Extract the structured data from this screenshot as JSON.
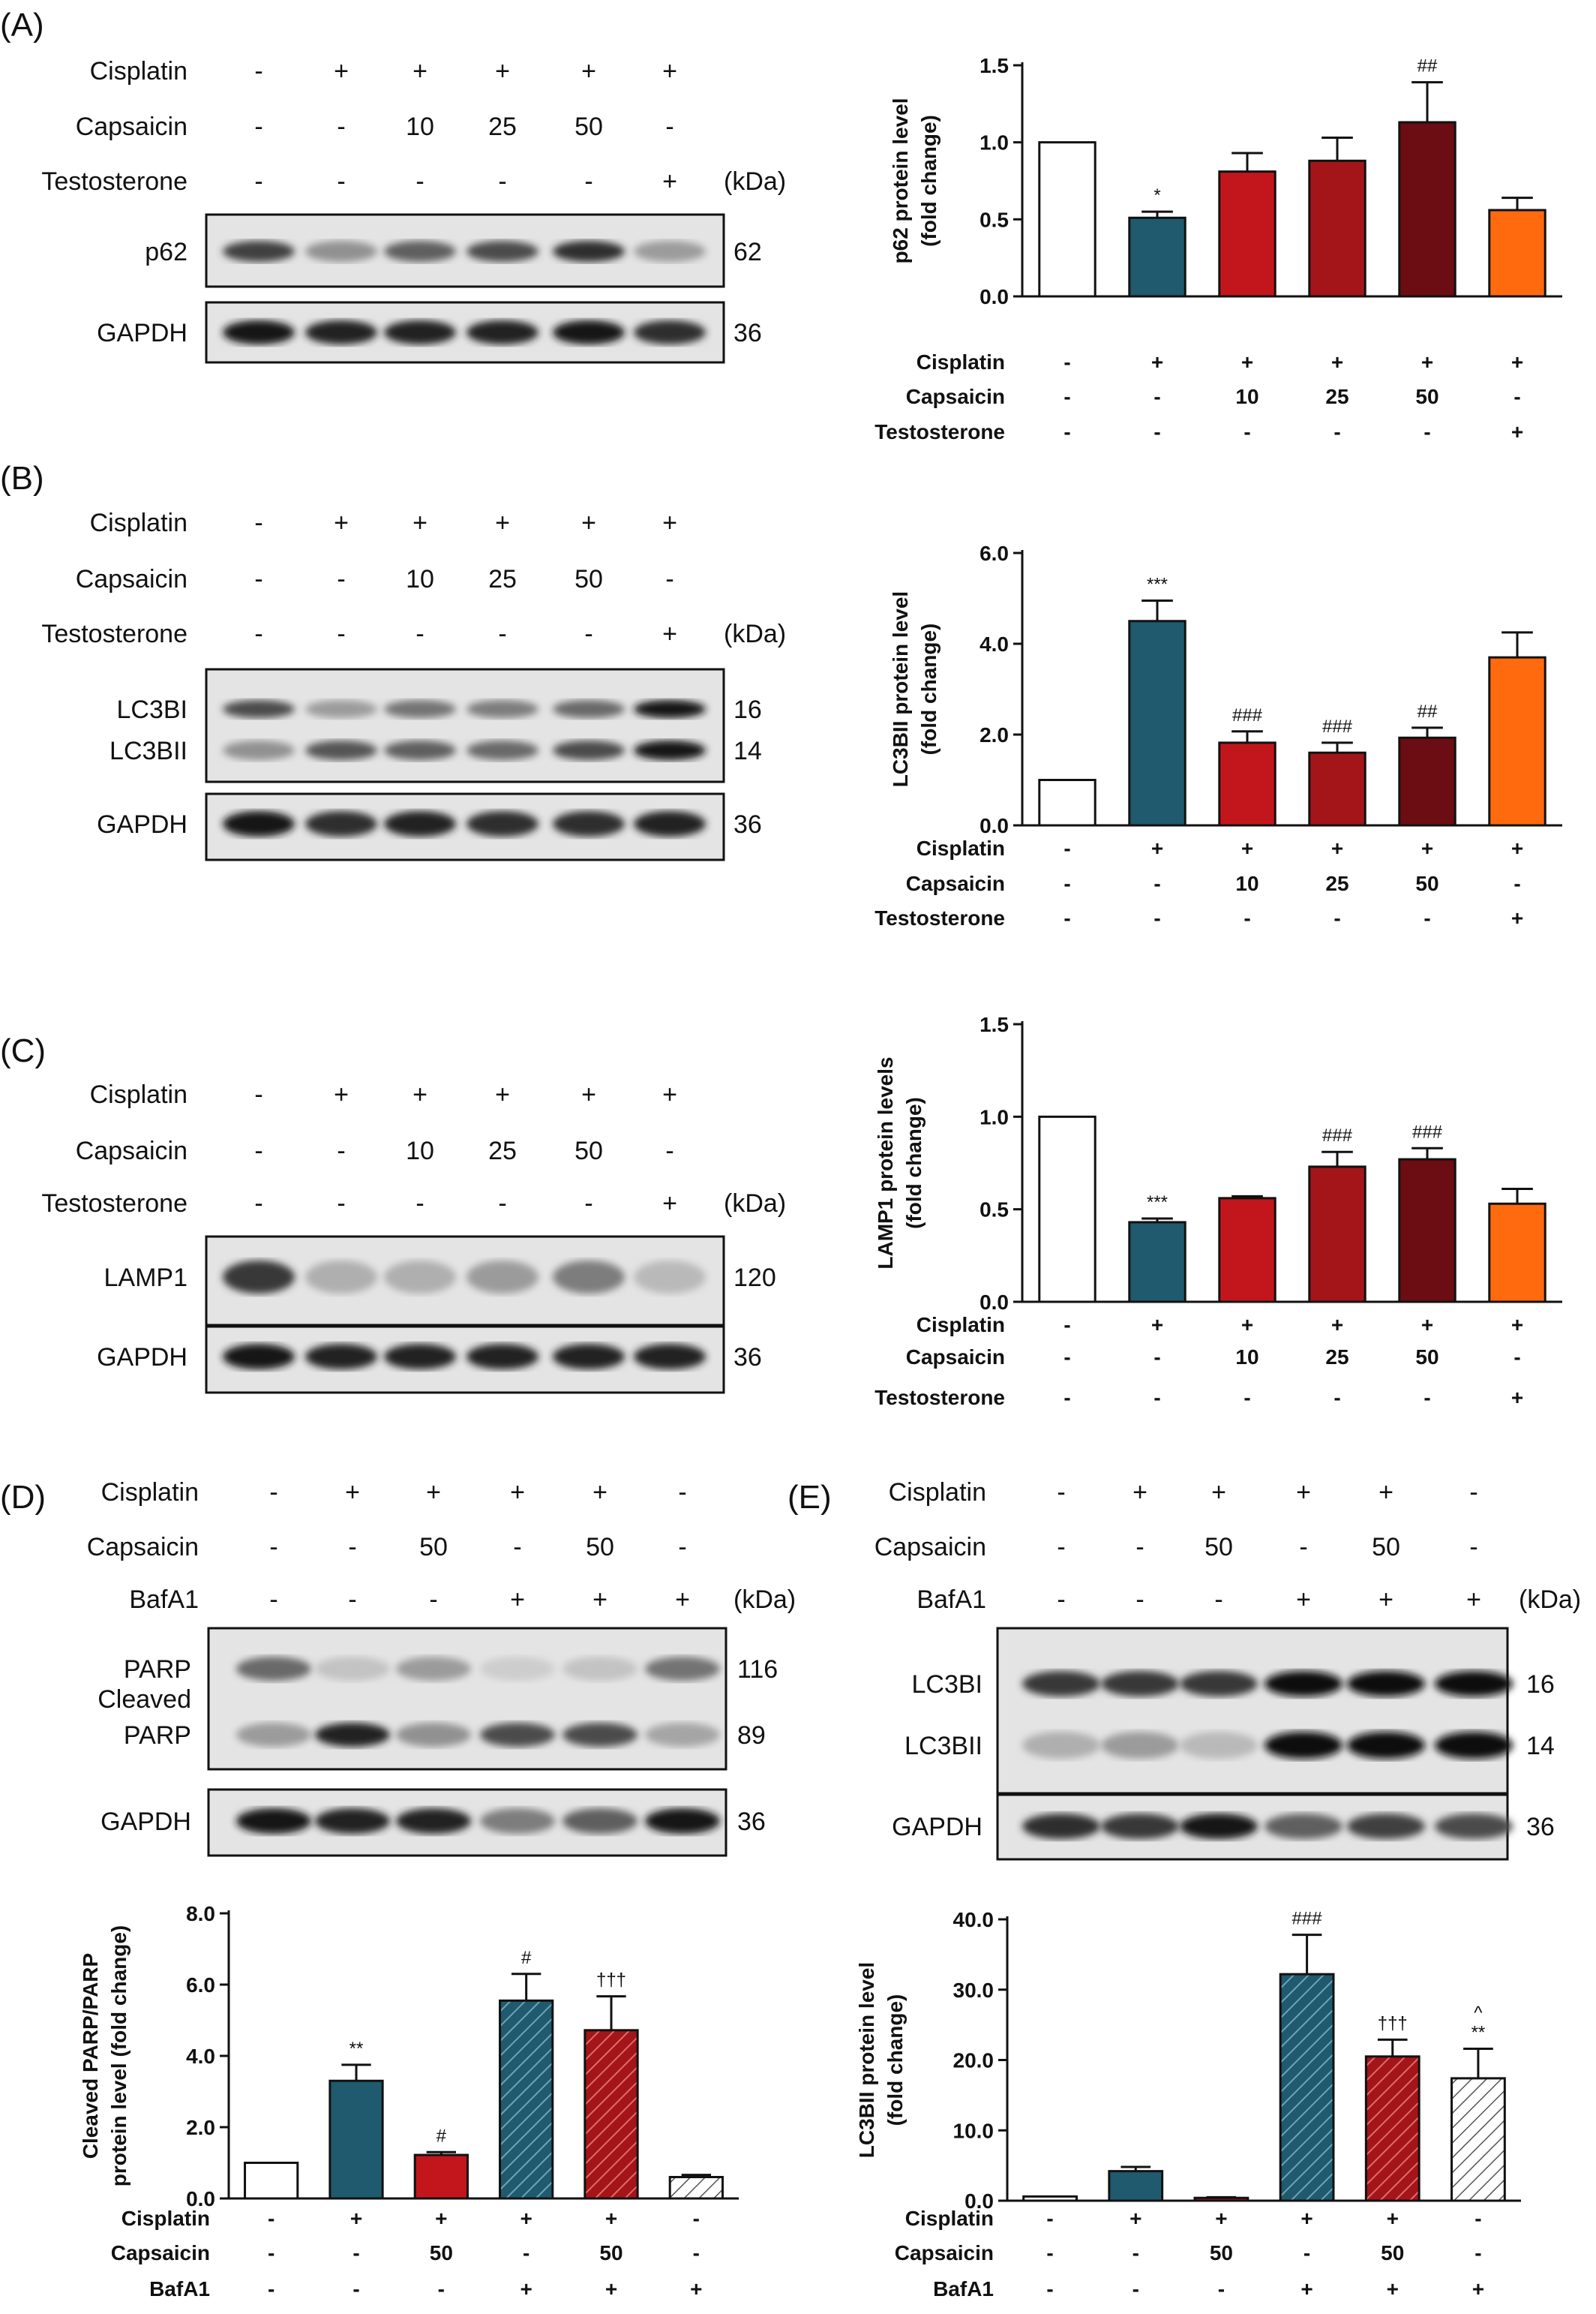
{
  "panels": {
    "A": "(A)",
    "B": "(B)",
    "C": "(C)",
    "D": "(D)",
    "E": "(E)"
  },
  "units": "(kDa)",
  "blot_conditions": {
    "abc": {
      "rows": [
        {
          "label": "Cisplatin",
          "values": [
            "-",
            "+",
            "+",
            "+",
            "+",
            "+"
          ]
        },
        {
          "label": "Capsaicin",
          "values": [
            "-",
            "-",
            "10",
            "25",
            "50",
            "-"
          ]
        },
        {
          "label": "Testosterone",
          "values": [
            "-",
            "-",
            "-",
            "-",
            "-",
            "+"
          ]
        }
      ]
    },
    "de": {
      "rows": [
        {
          "label": "Cisplatin",
          "values": [
            "-",
            "+",
            "+",
            "+",
            "+",
            "-"
          ]
        },
        {
          "label": "Capsaicin",
          "values": [
            "-",
            "-",
            "50",
            "-",
            "50",
            "-"
          ]
        },
        {
          "label": "BafA1",
          "values": [
            "-",
            "-",
            "-",
            "+",
            "+",
            "+"
          ]
        }
      ]
    }
  },
  "blots": {
    "A": [
      {
        "label": "p62",
        "kda": "62",
        "intensity": [
          0.75,
          0.35,
          0.6,
          0.7,
          0.85,
          0.3
        ]
      },
      {
        "label": "GAPDH",
        "kda": "36",
        "intensity": [
          0.95,
          0.9,
          0.9,
          0.9,
          0.95,
          0.85
        ]
      }
    ],
    "B": [
      {
        "label": "LC3BI",
        "kda": "16",
        "intensity": [
          0.7,
          0.3,
          0.5,
          0.45,
          0.55,
          0.95
        ]
      },
      {
        "label": "LC3BII",
        "kda": "14",
        "intensity": [
          0.35,
          0.65,
          0.6,
          0.55,
          0.7,
          0.95
        ]
      },
      {
        "label": "GAPDH",
        "kda": "36",
        "intensity": [
          0.95,
          0.85,
          0.9,
          0.85,
          0.85,
          0.9
        ]
      }
    ],
    "C": [
      {
        "label": "LAMP1",
        "kda": "120",
        "intensity": [
          0.8,
          0.2,
          0.2,
          0.3,
          0.45,
          0.15
        ]
      },
      {
        "label": "GAPDH",
        "kda": "36",
        "intensity": [
          0.95,
          0.9,
          0.9,
          0.9,
          0.9,
          0.9
        ]
      }
    ],
    "D": [
      {
        "label": "PARP",
        "kda": "116",
        "intensity": [
          0.55,
          0.1,
          0.3,
          0.05,
          0.1,
          0.5
        ]
      },
      {
        "label": "Cleaved\nPARP",
        "kda": "89",
        "intensity": [
          0.3,
          0.9,
          0.35,
          0.7,
          0.7,
          0.25
        ]
      },
      {
        "label": "GAPDH",
        "kda": "36",
        "intensity": [
          0.95,
          0.9,
          0.9,
          0.45,
          0.6,
          0.95
        ]
      }
    ],
    "E": [
      {
        "label": "LC3BI",
        "kda": "16",
        "intensity": [
          0.8,
          0.8,
          0.8,
          1.0,
          1.0,
          1.0
        ]
      },
      {
        "label": "LC3BII",
        "kda": "14",
        "intensity": [
          0.2,
          0.3,
          0.15,
          1.0,
          1.0,
          1.0
        ]
      },
      {
        "label": "GAPDH",
        "kda": "36",
        "intensity": [
          0.85,
          0.8,
          0.95,
          0.6,
          0.75,
          0.7
        ]
      }
    ]
  },
  "chart_data": [
    {
      "panel": "A",
      "type": "bar",
      "ylabel": "p62 protein level\n(fold change)",
      "ylim": [
        0,
        1.5
      ],
      "yticks": [
        "0.0",
        "0.5",
        "1.0",
        "1.5"
      ],
      "values": [
        1.0,
        0.51,
        0.81,
        0.88,
        1.13,
        0.56
      ],
      "errors": [
        0,
        0.04,
        0.12,
        0.15,
        0.26,
        0.08
      ],
      "annotations": [
        "",
        "*",
        "",
        "",
        "##",
        ""
      ],
      "colors": [
        "#ffffff",
        "#1f5a6e",
        "#c3161c",
        "#a31519",
        "#6b0d12",
        "#ff6a0e"
      ],
      "hatched": [
        false,
        false,
        false,
        false,
        false,
        false
      ],
      "condition_rows": [
        {
          "label": "Cisplatin",
          "values": [
            "-",
            "+",
            "+",
            "+",
            "+",
            "+"
          ]
        },
        {
          "label": "Capsaicin",
          "values": [
            "-",
            "-",
            "10",
            "25",
            "50",
            "-"
          ]
        },
        {
          "label": "Testosterone",
          "values": [
            "-",
            "-",
            "-",
            "-",
            "-",
            "+"
          ]
        }
      ]
    },
    {
      "panel": "B",
      "type": "bar",
      "ylabel": "LC3BII protein level\n(fold change)",
      "ylim": [
        0,
        6.0
      ],
      "yticks": [
        "0.0",
        "2.0",
        "4.0",
        "6.0"
      ],
      "values": [
        1.0,
        4.5,
        1.82,
        1.6,
        1.93,
        3.7
      ],
      "errors": [
        0,
        0.45,
        0.25,
        0.22,
        0.22,
        0.55
      ],
      "annotations": [
        "",
        "***",
        "###",
        "###",
        "##",
        ""
      ],
      "colors": [
        "#ffffff",
        "#1f5a6e",
        "#c3161c",
        "#a31519",
        "#6b0d12",
        "#ff6a0e"
      ],
      "hatched": [
        false,
        false,
        false,
        false,
        false,
        false
      ],
      "condition_rows": [
        {
          "label": "Cisplatin",
          "values": [
            "-",
            "+",
            "+",
            "+",
            "+",
            "+"
          ]
        },
        {
          "label": "Capsaicin",
          "values": [
            "-",
            "-",
            "10",
            "25",
            "50",
            "-"
          ]
        },
        {
          "label": "Testosterone",
          "values": [
            "-",
            "-",
            "-",
            "-",
            "-",
            "+"
          ]
        }
      ]
    },
    {
      "panel": "C",
      "type": "bar",
      "ylabel": "LAMP1 protein levels\n(fold change)",
      "ylim": [
        0,
        1.5
      ],
      "yticks": [
        "0.0",
        "0.5",
        "1.0",
        "1.5"
      ],
      "values": [
        1.0,
        0.43,
        0.56,
        0.73,
        0.77,
        0.53
      ],
      "errors": [
        0,
        0.02,
        0.01,
        0.08,
        0.06,
        0.08
      ],
      "annotations": [
        "",
        "***",
        "",
        "###",
        "###",
        ""
      ],
      "colors": [
        "#ffffff",
        "#1f5a6e",
        "#c3161c",
        "#a31519",
        "#6b0d12",
        "#ff6a0e"
      ],
      "hatched": [
        false,
        false,
        false,
        false,
        false,
        false
      ],
      "condition_rows": [
        {
          "label": "Cisplatin",
          "values": [
            "-",
            "+",
            "+",
            "+",
            "+",
            "+"
          ]
        },
        {
          "label": "Capsaicin",
          "values": [
            "-",
            "-",
            "10",
            "25",
            "50",
            "-"
          ]
        },
        {
          "label": "Testosterone",
          "values": [
            "-",
            "-",
            "-",
            "-",
            "-",
            "+"
          ]
        }
      ]
    },
    {
      "panel": "D",
      "type": "bar",
      "ylabel": "Cleaved PARP/PARP\nprotein level (fold change)",
      "ylim": [
        0,
        8.0
      ],
      "yticks": [
        "0.0",
        "2.0",
        "4.0",
        "6.0",
        "8.0"
      ],
      "values": [
        1.0,
        3.3,
        1.22,
        5.55,
        4.72,
        0.6
      ],
      "errors": [
        0,
        0.45,
        0.08,
        0.75,
        0.95,
        0.06
      ],
      "annotations": [
        "",
        "**",
        "#",
        "#",
        "†††",
        ""
      ],
      "colors": [
        "#ffffff",
        "#1f5a6e",
        "#c3161c",
        "#1f5a6e",
        "#a31519",
        "#ffffff"
      ],
      "hatched": [
        false,
        false,
        false,
        true,
        true,
        true
      ],
      "condition_rows": [
        {
          "label": "Cisplatin",
          "values": [
            "-",
            "+",
            "+",
            "+",
            "+",
            "-"
          ]
        },
        {
          "label": "Capsaicin",
          "values": [
            "-",
            "-",
            "50",
            "-",
            "50",
            "-"
          ]
        },
        {
          "label": "BafA1",
          "values": [
            "-",
            "-",
            "-",
            "+",
            "+",
            "+"
          ]
        }
      ]
    },
    {
      "panel": "E",
      "type": "bar",
      "ylabel": "LC3BII protein level\n(fold change)",
      "ylim": [
        0,
        40.0
      ],
      "yticks": [
        "0.0",
        "10.0",
        "20.0",
        "30.0",
        "40.0"
      ],
      "values": [
        0.6,
        4.2,
        0.4,
        32.2,
        20.5,
        17.4
      ],
      "errors": [
        0,
        0.6,
        0.1,
        5.6,
        2.4,
        4.2
      ],
      "annotations": [
        "",
        "",
        "",
        "###",
        "†††",
        "^\n**"
      ],
      "colors": [
        "#ffffff",
        "#1f5a6e",
        "#c3161c",
        "#1f5a6e",
        "#a31519",
        "#ffffff"
      ],
      "hatched": [
        false,
        false,
        false,
        true,
        true,
        true
      ],
      "condition_rows": [
        {
          "label": "Cisplatin",
          "values": [
            "-",
            "+",
            "+",
            "+",
            "+",
            "-"
          ]
        },
        {
          "label": "Capsaicin",
          "values": [
            "-",
            "-",
            "50",
            "-",
            "50",
            "-"
          ]
        },
        {
          "label": "BafA1",
          "values": [
            "-",
            "-",
            "-",
            "+",
            "+",
            "+"
          ]
        }
      ]
    }
  ]
}
